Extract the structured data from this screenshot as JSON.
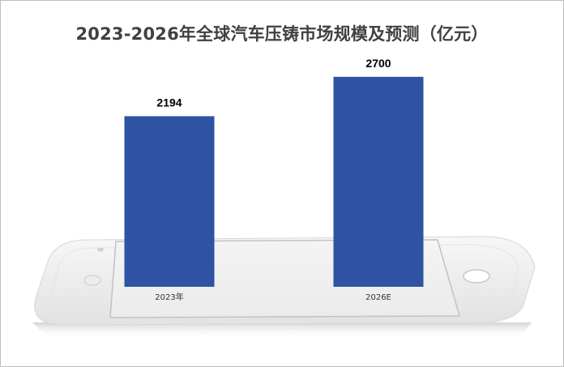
{
  "title": "2023-2026年全球汽车压铸市场规模及预测（亿元）",
  "colors": {
    "bar": "#2E53A3"
  },
  "chart_data": {
    "type": "bar",
    "title": "2023-2026年全球汽车压铸市场规模及预测（亿元）",
    "categories": [
      "2023年",
      "2026E"
    ],
    "values": [
      2194,
      2700
    ],
    "data_labels": [
      "2194",
      "2700"
    ],
    "xlabel": "",
    "ylabel": "",
    "ylim": [
      0,
      3000
    ],
    "grid": false,
    "legend": "none"
  }
}
